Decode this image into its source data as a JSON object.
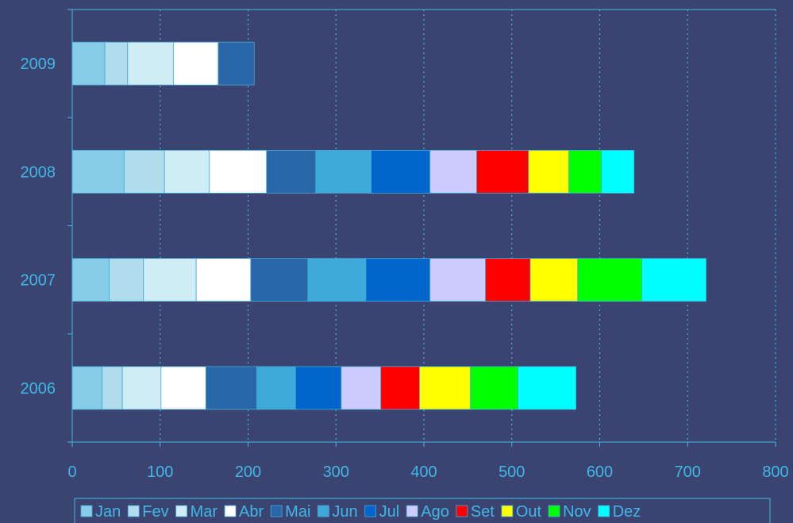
{
  "chart_data": {
    "type": "bar",
    "orientation": "horizontal",
    "stacked": true,
    "categories": [
      "2009",
      "2008",
      "2007",
      "2006"
    ],
    "series": [
      {
        "name": "Jan",
        "color": "#87cde8",
        "values": [
          37,
          59,
          42,
          34
        ]
      },
      {
        "name": "Fev",
        "color": "#b0dcec",
        "values": [
          26,
          46,
          39,
          23
        ]
      },
      {
        "name": "Mar",
        "color": "#d0ecf4",
        "values": [
          52,
          51,
          60,
          44
        ]
      },
      {
        "name": "Abr",
        "color": "#ffffff",
        "values": [
          51,
          65,
          62,
          51
        ]
      },
      {
        "name": "Mai",
        "color": "#2a67a8",
        "values": [
          41,
          56,
          65,
          58
        ]
      },
      {
        "name": "Jun",
        "color": "#3fa9d9",
        "values": [
          null,
          63,
          66,
          44
        ]
      },
      {
        "name": "Jul",
        "color": "#0066cc",
        "values": [
          null,
          67,
          73,
          52
        ]
      },
      {
        "name": "Ago",
        "color": "#ccccff",
        "values": [
          null,
          53,
          63,
          45
        ]
      },
      {
        "name": "Set",
        "color": "#ff0000",
        "values": [
          null,
          59,
          51,
          44
        ]
      },
      {
        "name": "Out",
        "color": "#ffff00",
        "values": [
          null,
          46,
          54,
          58
        ]
      },
      {
        "name": "Nov",
        "color": "#00ff00",
        "values": [
          null,
          37,
          73,
          54
        ]
      },
      {
        "name": "Dez",
        "color": "#00ffff",
        "values": [
          null,
          37,
          73,
          66
        ]
      }
    ],
    "xticks": [
      0,
      100,
      200,
      300,
      400,
      500,
      600,
      700,
      800
    ],
    "xlim": [
      0,
      800
    ],
    "grid": "vertical dotted",
    "legend": "bottom",
    "axis_color": "#3fb7e8",
    "background": "#3b4470"
  }
}
